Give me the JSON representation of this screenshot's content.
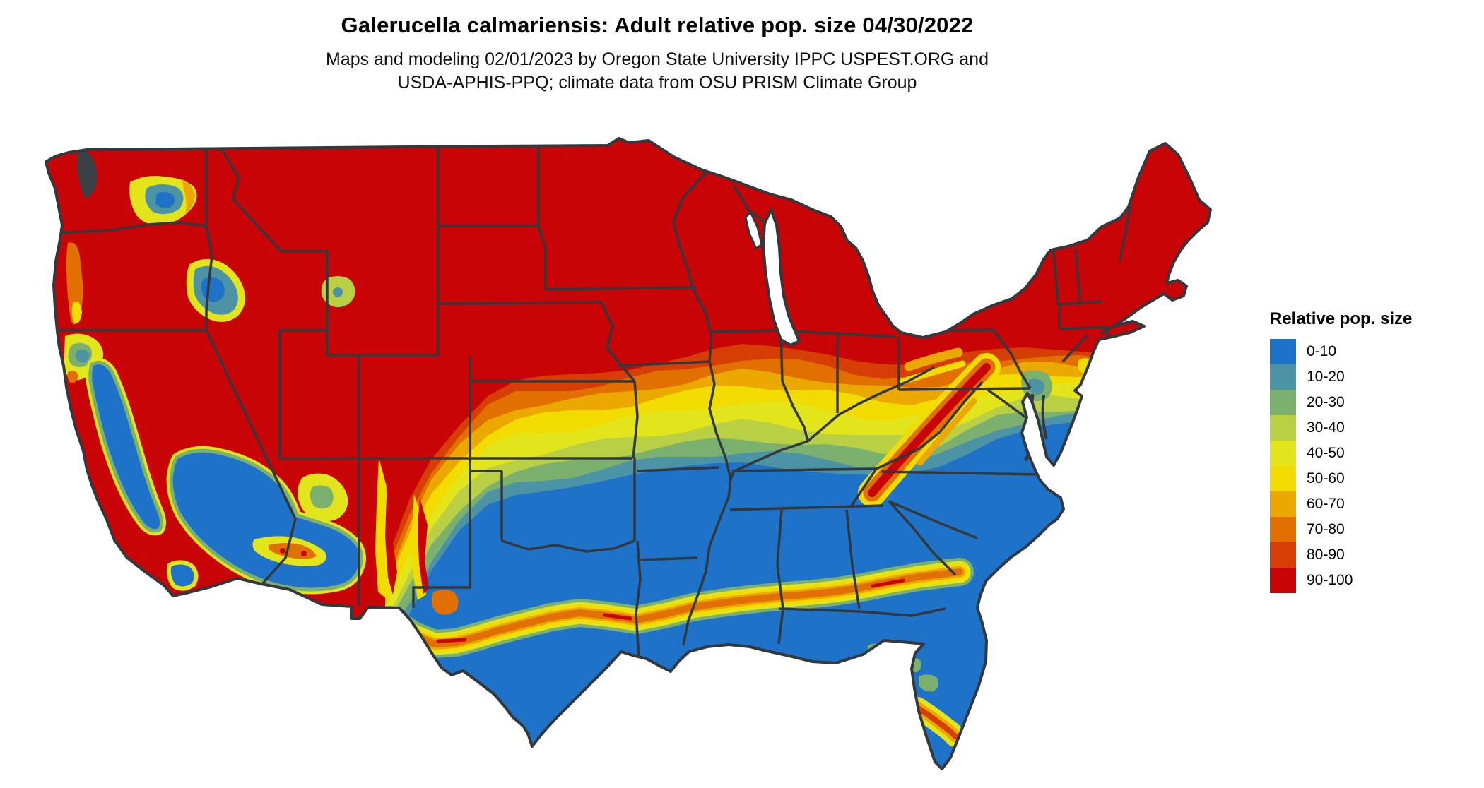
{
  "header": {
    "title": "Galerucella calmariensis: Adult relative pop. size 04/30/2022",
    "subtitle_line1": "Maps and modeling 02/01/2023 by Oregon State University IPPC USPEST.ORG and",
    "subtitle_line2": "USDA-APHIS-PPQ; climate data from OSU PRISM Climate Group"
  },
  "legend": {
    "title": "Relative pop. size",
    "entries": [
      {
        "label": "0-10",
        "color": "#1E73C8"
      },
      {
        "label": "10-20",
        "color": "#4D93A6"
      },
      {
        "label": "20-30",
        "color": "#7BB06F"
      },
      {
        "label": "30-40",
        "color": "#B9CF44"
      },
      {
        "label": "40-50",
        "color": "#E2E51C"
      },
      {
        "label": "50-60",
        "color": "#F2DC00"
      },
      {
        "label": "60-70",
        "color": "#EBA900"
      },
      {
        "label": "70-80",
        "color": "#E17000"
      },
      {
        "label": "80-90",
        "color": "#D63E06"
      },
      {
        "label": "90-100",
        "color": "#C80407"
      }
    ]
  },
  "map": {
    "region": "Contiguous United States",
    "type": "raster choropleth of relative population size bins (0-100)",
    "border_color": "#33383D",
    "lake_fill": "#FFFFFF",
    "sound_fill": "#3A4045",
    "background": "#FFFFFF"
  }
}
